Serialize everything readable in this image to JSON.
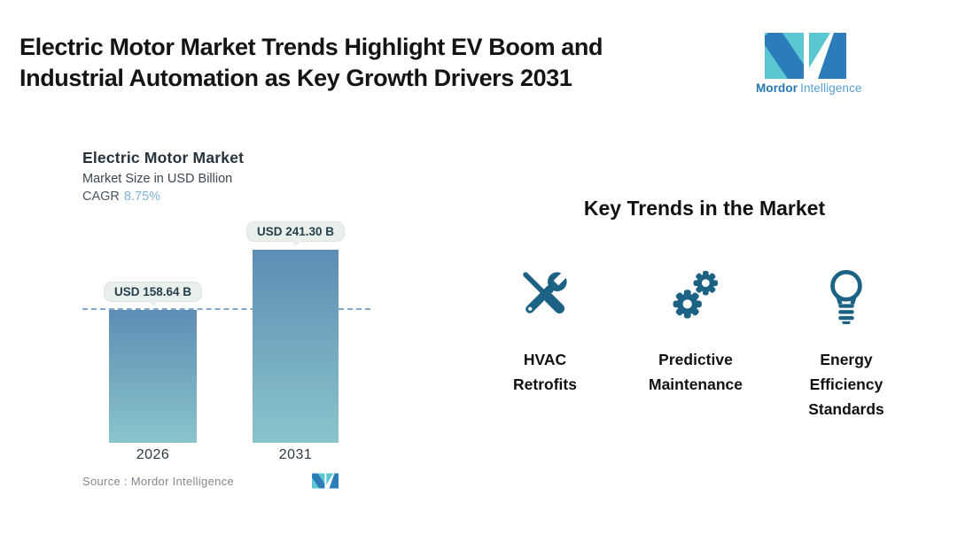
{
  "header": {
    "title_line1": "Electric Motor Market Trends Highlight EV Boom and",
    "title_line2": "Industrial Automation as Key Growth Drivers 2031",
    "brand": {
      "name_bold": "Mordor",
      "name_regular": "Intelligence"
    }
  },
  "chart": {
    "title": "Electric Motor Market",
    "subtitle": "Market Size in USD Billion",
    "cagr_label": "CAGR",
    "cagr_value": "8.75%",
    "source_label": "Source :  Mordor Intelligence"
  },
  "chart_data": {
    "type": "bar",
    "title": "Electric Motor Market",
    "subtitle": "Market Size in USD Billion",
    "unit": "USD Billion",
    "cagr_percent": 8.75,
    "categories": [
      "2026",
      "2031"
    ],
    "values": [
      158.64,
      241.3
    ],
    "value_labels": [
      "USD 158.64 B",
      "USD 241.30 B"
    ],
    "reference_line_at": 158.64,
    "bar_gradient_top": "#5D8DB4",
    "bar_gradient_bottom": "#8BC4CC",
    "grid": false,
    "legend": false
  },
  "trends": {
    "heading": "Key Trends in the Market",
    "items": [
      {
        "icon": "tools-icon",
        "label": "HVAC Retrofits"
      },
      {
        "icon": "gears-icon",
        "label": "Predictive Maintenance"
      },
      {
        "icon": "lightbulb-icon",
        "label": "Energy Efficiency Standards"
      }
    ]
  },
  "colors": {
    "icon_blue": "#1B6285",
    "logo_teal": "#5AC8D3",
    "logo_blue": "#2B7CB8",
    "cagr_blue": "#7FB2DA",
    "dashed_line": "#7FA8CE",
    "badge_bg": "#E9EFEB",
    "badge_text": "#24404E"
  }
}
